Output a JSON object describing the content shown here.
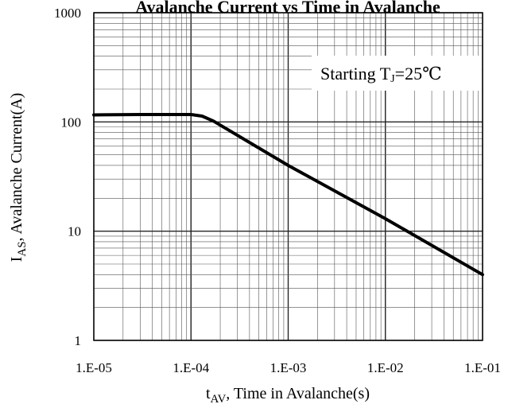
{
  "chart_data": {
    "type": "line",
    "title": "Avalanche Current vs Time in Avalanche",
    "xscale": "log",
    "yscale": "log",
    "xlim": [
      1e-05,
      0.1
    ],
    "ylim": [
      1,
      1000
    ],
    "x_ticks": [
      "1.E-05",
      "1.E-04",
      "1.E-03",
      "1.E-02",
      "1.E-01"
    ],
    "y_ticks": [
      "1",
      "10",
      "100",
      "1000"
    ],
    "xlabel": {
      "main": "t",
      "sub": "AV",
      "rest": ", Time in Avalanche(s)"
    },
    "ylabel": {
      "main": "I",
      "sub": "AS",
      "rest": ", Avalanche Current(A)"
    },
    "annotation": {
      "pre": "Starting T",
      "sub": "J",
      "post": "=25℃"
    },
    "grid": true,
    "series": [
      {
        "x": [
          1e-05,
          3e-05,
          0.0001,
          0.00013,
          0.00017,
          0.001,
          0.01,
          0.1
        ],
        "y": [
          116,
          117,
          117,
          113,
          102,
          40,
          13,
          4
        ]
      }
    ]
  },
  "colors": {
    "line": "#000000",
    "grid": "#555555",
    "background": "#ffffff"
  }
}
